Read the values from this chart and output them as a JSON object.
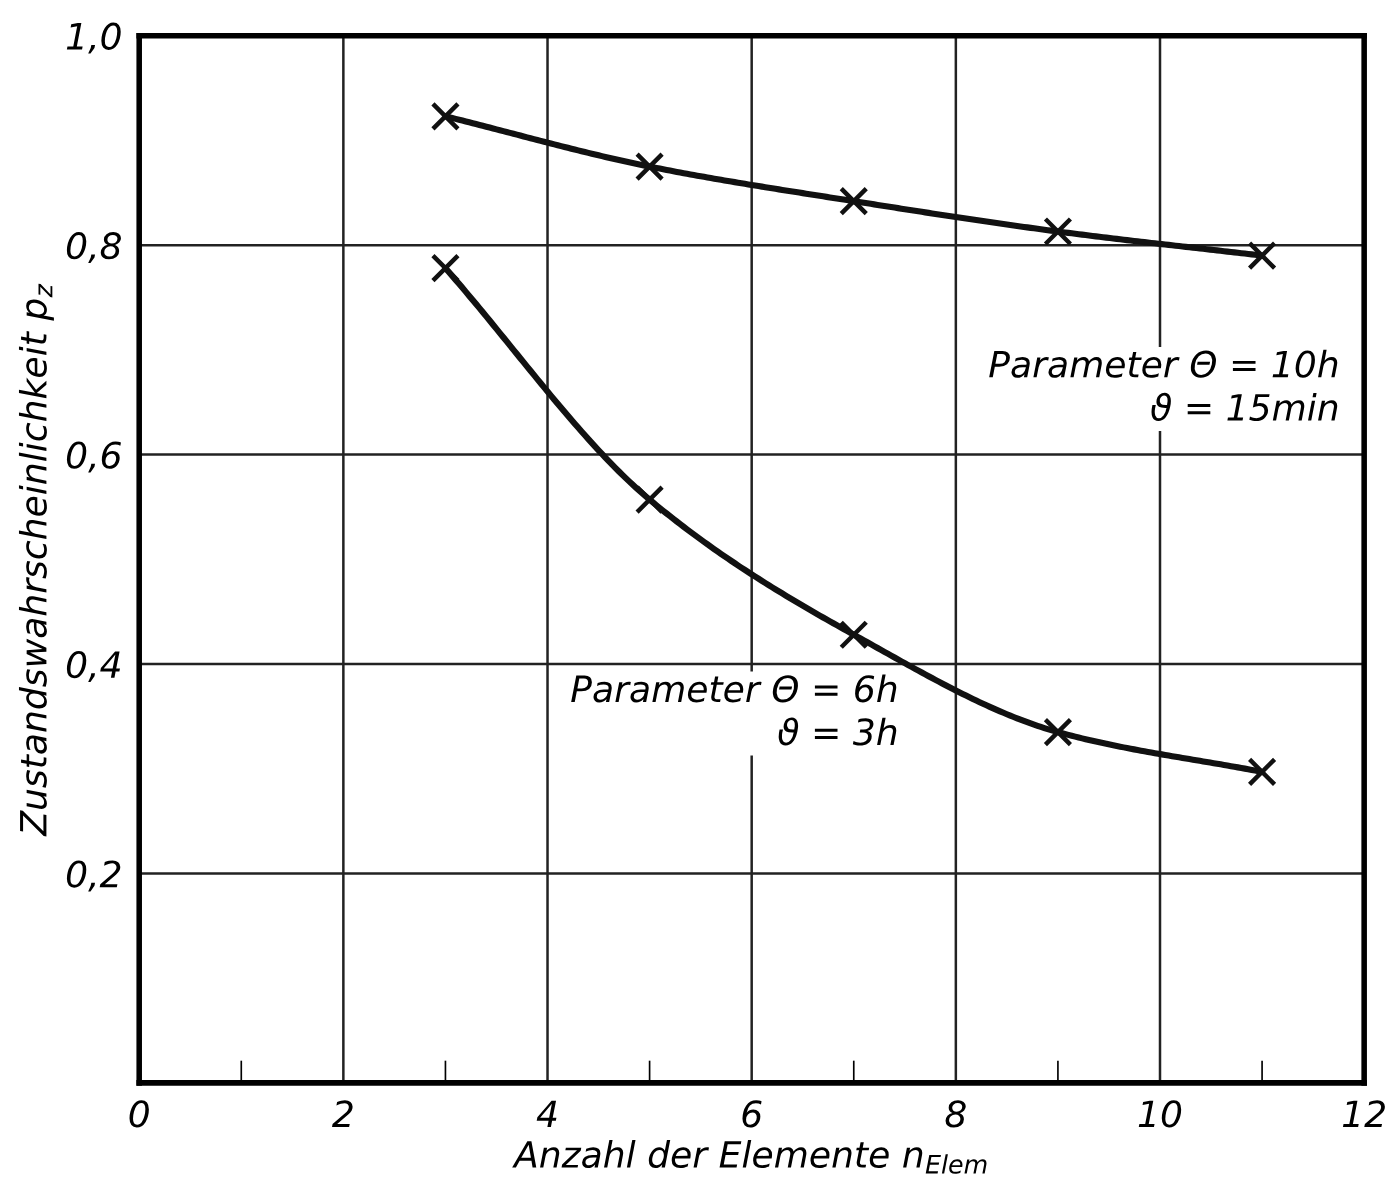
{
  "chart_data": {
    "type": "line",
    "xlabel": "Anzahl der Elemente n$_{Elem}$",
    "ylabel": "Zustandswahrscheinlichkeit p$_{z}$",
    "x": [
      3,
      5,
      7,
      9,
      11
    ],
    "series": [
      {
        "color": "#111111",
        "values": [
          0.923,
          0.875,
          0.842,
          0.813,
          0.79
        ]
      },
      {
        "color": "#111111",
        "values": [
          0.778,
          0.557,
          0.428,
          0.335,
          0.297
        ]
      }
    ],
    "annotations": [
      "Parameter Θ = 10h\nϑ = 15min",
      "Parameter Θ = 6h\nϑ = 3h"
    ],
    "xlim": [
      0,
      12
    ],
    "ylim": [
      0,
      1.0
    ],
    "xticks": [
      {
        "value": 0,
        "label": "0"
      },
      {
        "value": 1,
        "label": null
      },
      2,
      {
        "value": 3,
        "label": null
      },
      4,
      {
        "value": 5,
        "label": null
      },
      6,
      {
        "value": 7,
        "label": null
      },
      8,
      {
        "value": 9,
        "label": null
      },
      10,
      {
        "value": 11,
        "label": null
      },
      12
    ],
    "yticks": [
      {
        "value": 0.2,
        "label": "0,2"
      },
      {
        "value": 0.4,
        "label": "0,4"
      },
      {
        "value": 0.6,
        "label": "0,6"
      },
      {
        "value": 0.8,
        "label": "0,8"
      },
      {
        "value": 1.0,
        "label": "1,0"
      }
    ],
    "grid": true,
    "marker": "cross",
    "line_style": "solid",
    "legend": false
  }
}
